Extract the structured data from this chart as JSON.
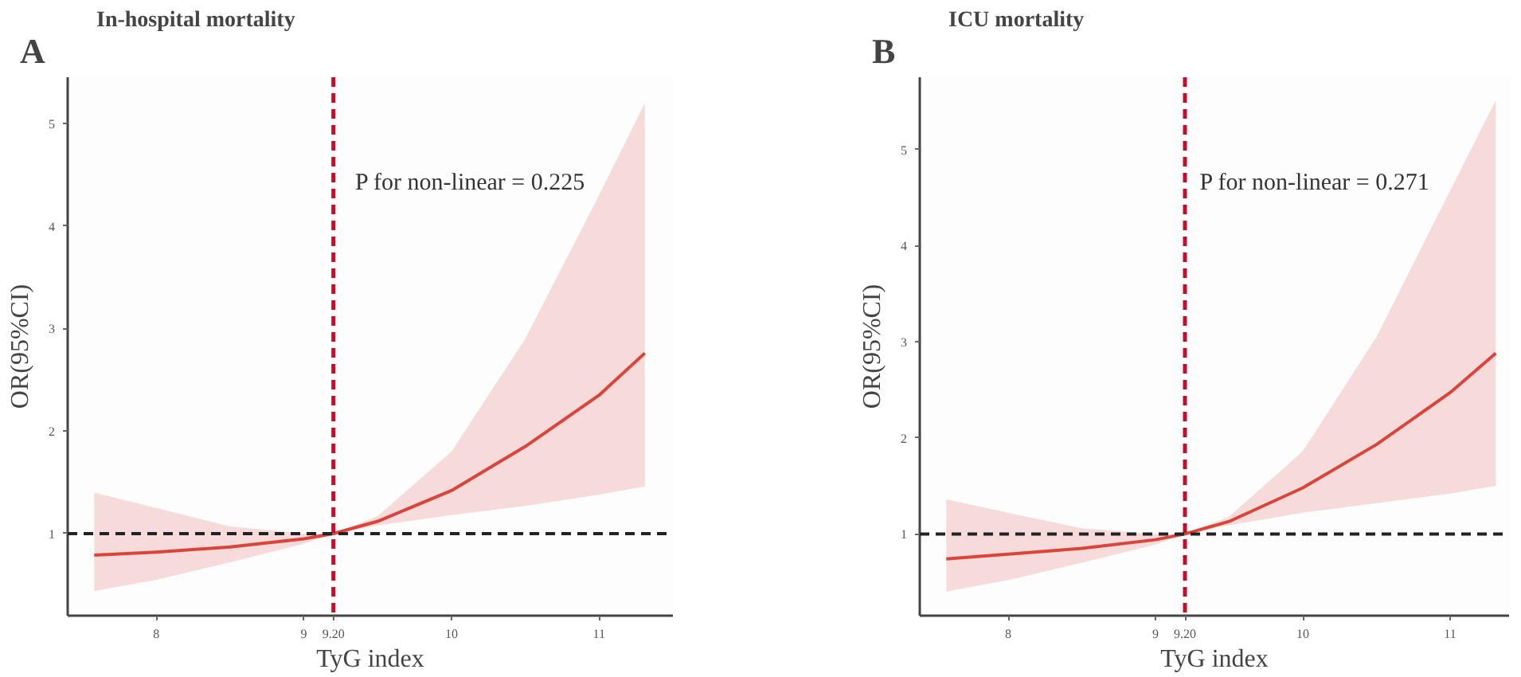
{
  "chart_data": [
    {
      "type": "line",
      "title": "In-hospital mortality",
      "xlabel": "TyG index",
      "ylabel": "OR(95%CI)",
      "annotations": [
        "A",
        "P for non-linear = 0.225"
      ],
      "x": [
        7.58,
        8,
        8.5,
        9,
        9.2,
        9.5,
        10,
        10.5,
        11,
        11.31
      ],
      "series": [
        {
          "color": "#d9453b",
          "values": [
            0.79,
            0.82,
            0.87,
            0.95,
            1.0,
            1.12,
            1.42,
            1.85,
            2.35,
            2.76
          ],
          "lower": [
            0.44,
            0.55,
            0.72,
            0.9,
            1.0,
            1.08,
            1.18,
            1.27,
            1.38,
            1.46
          ],
          "upper": [
            1.4,
            1.25,
            1.07,
            1.0,
            1.0,
            1.17,
            1.8,
            2.9,
            4.3,
            5.2
          ]
        }
      ],
      "xlim": [
        7.4,
        11.5
      ],
      "ylim": [
        0.2,
        5.45
      ],
      "xticks": [
        8,
        9,
        {
          "value": 9.2,
          "label": "9.20"
        },
        10,
        11
      ],
      "yticks": [
        1,
        2,
        3,
        4,
        5
      ],
      "ref_lines": [
        {
          "axis": "x",
          "value": 9.2,
          "color": "#c0102a",
          "line_style": "dashed"
        },
        {
          "axis": "y",
          "value": 1,
          "color": "#222222",
          "line_style": "dashed"
        }
      ]
    },
    {
      "type": "line",
      "title": "ICU mortality",
      "xlabel": "TyG index",
      "ylabel": "OR(95%CI)",
      "annotations": [
        "B",
        "P for non-linear = 0.271"
      ],
      "x": [
        7.58,
        8,
        8.5,
        9,
        9.2,
        9.5,
        10,
        10.5,
        11,
        11.31
      ],
      "series": [
        {
          "color": "#d9453b",
          "values": [
            0.74,
            0.79,
            0.85,
            0.94,
            1.0,
            1.13,
            1.48,
            1.93,
            2.47,
            2.88
          ],
          "lower": [
            0.4,
            0.52,
            0.7,
            0.89,
            1.0,
            1.09,
            1.22,
            1.32,
            1.42,
            1.5
          ],
          "upper": [
            1.36,
            1.22,
            1.06,
            1.0,
            1.0,
            1.18,
            1.86,
            3.05,
            4.57,
            5.51
          ]
        }
      ],
      "xlim": [
        7.4,
        11.4
      ],
      "ylim": [
        0.15,
        5.75
      ],
      "xticks": [
        8,
        9,
        {
          "value": 9.2,
          "label": "9.20"
        },
        10,
        11
      ],
      "yticks": [
        1,
        2,
        3,
        4,
        5
      ],
      "ref_lines": [
        {
          "axis": "x",
          "value": 9.2,
          "color": "#c0102a",
          "line_style": "dashed"
        },
        {
          "axis": "y",
          "value": 1,
          "color": "#222222",
          "line_style": "dashed"
        }
      ]
    }
  ]
}
